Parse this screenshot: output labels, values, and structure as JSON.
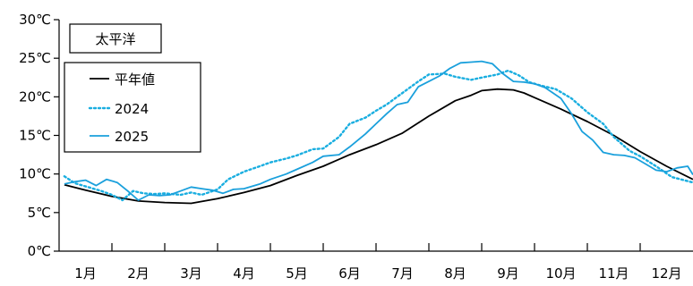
{
  "chart_data": {
    "type": "line",
    "title": "太平洋",
    "y_ticks": [
      "0℃",
      "5℃",
      "10℃",
      "15℃",
      "20℃",
      "25℃",
      "30℃"
    ],
    "y_tick_values": [
      0,
      5,
      10,
      15,
      20,
      25,
      30
    ],
    "x_ticks": [
      "1月",
      "2月",
      "3月",
      "4月",
      "5月",
      "6月",
      "7月",
      "8月",
      "9月",
      "10月",
      "11月",
      "12月"
    ],
    "x_tick_values": [
      0.5,
      1.5,
      2.5,
      3.5,
      4.5,
      5.5,
      6.5,
      7.5,
      8.5,
      9.5,
      10.5,
      11.5
    ],
    "xlim": [
      0,
      12
    ],
    "ylim": [
      0,
      30
    ],
    "legend_position": "top-left",
    "series": [
      {
        "name": "平年値",
        "color": "#000000",
        "dash": "solid",
        "x": [
          0.1,
          0.5,
          1.0,
          1.5,
          2.0,
          2.5,
          3.0,
          3.5,
          4.0,
          4.5,
          5.0,
          5.5,
          6.0,
          6.5,
          7.0,
          7.5,
          7.8,
          8.0,
          8.3,
          8.6,
          8.8,
          9.0,
          9.5,
          10.0,
          10.5,
          11.0,
          11.5,
          12.0
        ],
        "values": [
          8.6,
          7.9,
          7.1,
          6.5,
          6.3,
          6.2,
          6.8,
          7.6,
          8.5,
          9.8,
          11.0,
          12.5,
          13.8,
          15.3,
          17.5,
          19.5,
          20.2,
          20.8,
          21.0,
          20.9,
          20.5,
          19.9,
          18.4,
          16.8,
          15.0,
          12.9,
          11.0,
          9.3
        ]
      },
      {
        "name": "2024",
        "color": "#1aaee0",
        "dash": "dotted",
        "x": [
          0.1,
          0.3,
          0.5,
          0.8,
          1.0,
          1.2,
          1.4,
          1.6,
          1.8,
          2.0,
          2.3,
          2.5,
          2.7,
          3.0,
          3.2,
          3.5,
          3.8,
          4.0,
          4.3,
          4.5,
          4.8,
          5.0,
          5.3,
          5.5,
          5.8,
          6.0,
          6.2,
          6.5,
          6.8,
          7.0,
          7.3,
          7.5,
          7.8,
          8.0,
          8.3,
          8.5,
          8.7,
          8.9,
          9.1,
          9.4,
          9.7,
          10.0,
          10.3,
          10.5,
          10.8,
          11.0,
          11.3,
          11.6,
          12.0
        ],
        "values": [
          9.7,
          8.8,
          8.4,
          7.8,
          7.3,
          6.6,
          7.8,
          7.5,
          7.4,
          7.5,
          7.3,
          7.6,
          7.3,
          8.0,
          9.3,
          10.3,
          11.0,
          11.5,
          12.0,
          12.4,
          13.2,
          13.3,
          14.8,
          16.5,
          17.3,
          18.2,
          19.0,
          20.5,
          22.0,
          22.9,
          23.0,
          22.6,
          22.2,
          22.5,
          22.9,
          23.4,
          22.8,
          21.9,
          21.5,
          21.0,
          19.8,
          18.0,
          16.5,
          14.8,
          13.0,
          12.3,
          11.0,
          9.6,
          8.9
        ]
      },
      {
        "name": "2025",
        "color": "#1aa0dc",
        "dash": "solid",
        "x": [
          0.1,
          0.3,
          0.5,
          0.7,
          0.9,
          1.1,
          1.3,
          1.5,
          1.7,
          1.9,
          2.1,
          2.3,
          2.5,
          2.7,
          2.9,
          3.1,
          3.3,
          3.5,
          3.8,
          4.0,
          4.3,
          4.5,
          4.8,
          5.0,
          5.3,
          5.5,
          5.8,
          6.0,
          6.2,
          6.4,
          6.6,
          6.8,
          7.0,
          7.2,
          7.4,
          7.6,
          7.8,
          8.0,
          8.2,
          8.4,
          8.6,
          8.8,
          9.0,
          9.2,
          9.5,
          9.7,
          9.9,
          10.1,
          10.3,
          10.5,
          10.7,
          10.9,
          11.1,
          11.3,
          11.5,
          11.7,
          11.9,
          12.0
        ],
        "values": [
          8.7,
          9.0,
          9.2,
          8.5,
          9.3,
          8.9,
          7.8,
          6.6,
          7.3,
          7.2,
          7.3,
          7.8,
          8.3,
          8.1,
          7.9,
          7.5,
          8.0,
          8.1,
          8.7,
          9.3,
          10.0,
          10.6,
          11.5,
          12.3,
          12.5,
          13.5,
          15.2,
          16.5,
          17.8,
          19.0,
          19.3,
          21.3,
          22.0,
          22.7,
          23.7,
          24.4,
          24.5,
          24.6,
          24.3,
          23.0,
          22.0,
          21.9,
          21.7,
          21.2,
          19.8,
          17.8,
          15.5,
          14.4,
          12.8,
          12.5,
          12.4,
          12.1,
          11.3,
          10.5,
          10.3,
          10.8,
          11.0,
          9.9
        ]
      }
    ]
  }
}
